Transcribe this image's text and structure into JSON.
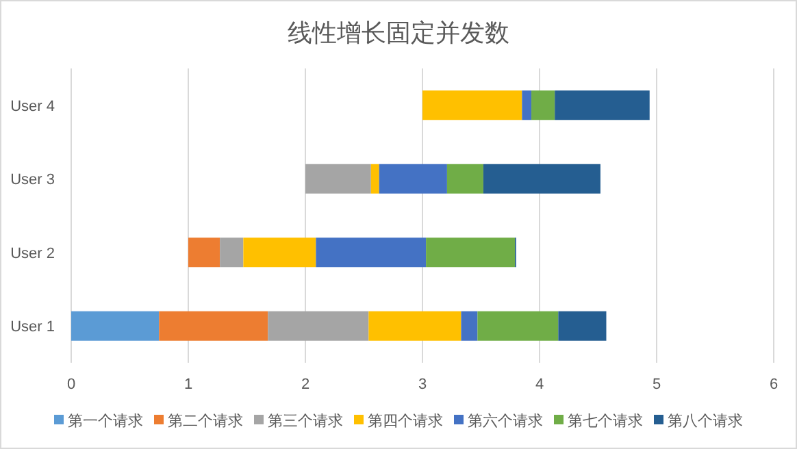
{
  "chart_data": {
    "type": "bar",
    "orientation": "horizontal",
    "title": "线性增长固定并发数",
    "categories": [
      "User 4",
      "User 3",
      "User 2",
      "User 1"
    ],
    "series": [
      {
        "name": "第一个请求",
        "color": "#5b9bd5",
        "base": [
          null,
          null,
          null,
          0
        ],
        "values": [
          null,
          null,
          null,
          0.75
        ]
      },
      {
        "name": "第二个请求",
        "color": "#ed7d31",
        "base": [
          null,
          null,
          1,
          0.75
        ],
        "values": [
          null,
          null,
          0.27,
          0.93
        ]
      },
      {
        "name": "第三个请求",
        "color": "#a5a5a5",
        "base": [
          null,
          2,
          1.27,
          1.68
        ],
        "values": [
          null,
          0.56,
          0.2,
          0.86
        ]
      },
      {
        "name": "第四个请求",
        "color": "#ffc000",
        "base": [
          3,
          2.56,
          1.47,
          2.54
        ],
        "values": [
          0.85,
          0.07,
          0.62,
          0.79
        ]
      },
      {
        "name": "第六个请求",
        "color": "#4472c4",
        "base": [
          3.85,
          2.63,
          2.09,
          3.33
        ],
        "values": [
          0.08,
          0.58,
          0.94,
          0.14
        ]
      },
      {
        "name": "第七个请求",
        "color": "#70ad47",
        "base": [
          3.93,
          3.21,
          3.03,
          3.47
        ],
        "values": [
          0.2,
          0.31,
          0.76,
          0.69
        ]
      },
      {
        "name": "第八个请求",
        "color": "#255e91",
        "base": [
          4.13,
          3.52,
          3.79,
          4.16
        ],
        "values": [
          0.81,
          1.0,
          0.01,
          0.41
        ]
      }
    ],
    "xlim": [
      0,
      6
    ],
    "xticks": [
      0,
      1,
      2,
      3,
      4,
      5,
      6
    ],
    "grid": "x",
    "legend": "bottom"
  }
}
